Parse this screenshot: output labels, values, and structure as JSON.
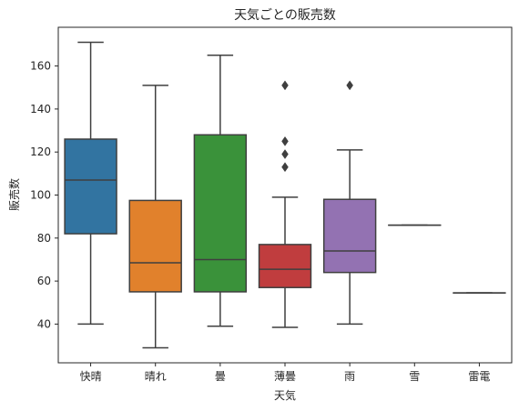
{
  "chart_data": {
    "type": "box",
    "title": "天気ごとの販売数",
    "xlabel": "天気",
    "ylabel": "販売数",
    "ylim": [
      22,
      178
    ],
    "yticks": [
      40,
      60,
      80,
      100,
      120,
      140,
      160
    ],
    "grid": false,
    "categories": [
      "快晴",
      "晴れ",
      "曇",
      "薄曇",
      "雨",
      "雪",
      "雷電"
    ],
    "colors": [
      "#3274a1",
      "#e1812c",
      "#3a923a",
      "#c03d3e",
      "#9372b2",
      "#845b53",
      "#d684bd"
    ],
    "boxes": [
      {
        "whisker_low": 40,
        "q1": 82,
        "median": 107,
        "q3": 126,
        "whisker_high": 171,
        "outliers": []
      },
      {
        "whisker_low": 29,
        "q1": 55,
        "median": 68.5,
        "q3": 97.5,
        "whisker_high": 151,
        "outliers": []
      },
      {
        "whisker_low": 39,
        "q1": 55,
        "median": 70,
        "q3": 128,
        "whisker_high": 165,
        "outliers": []
      },
      {
        "whisker_low": 38.5,
        "q1": 57,
        "median": 65.5,
        "q3": 77,
        "whisker_high": 99,
        "outliers": [
          151,
          125,
          119,
          113
        ]
      },
      {
        "whisker_low": 40,
        "q1": 64,
        "median": 74,
        "q3": 98,
        "whisker_high": 121,
        "outliers": [
          151
        ]
      },
      {
        "whisker_low": 86,
        "q1": 86,
        "median": 86,
        "q3": 86,
        "whisker_high": 86,
        "outliers": []
      },
      {
        "whisker_low": 54.5,
        "q1": 54.5,
        "median": 54.5,
        "q3": 54.5,
        "whisker_high": 54.5,
        "outliers": []
      }
    ]
  }
}
